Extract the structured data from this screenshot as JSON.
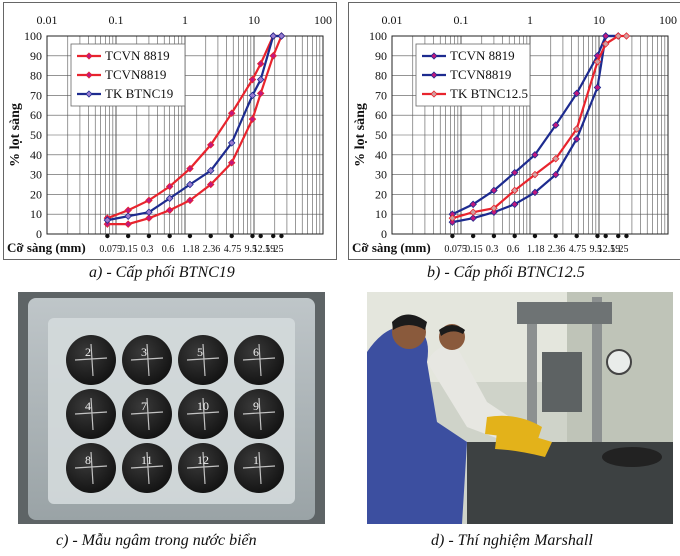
{
  "chart_data": [
    {
      "type": "line",
      "xscale": "log",
      "x_top_ticks": [
        "0.01",
        "0.1",
        "1",
        "10",
        "100"
      ],
      "xlim": [
        0.01,
        100
      ],
      "ylim": [
        0,
        100
      ],
      "y_ticks": [
        "0",
        "10",
        "20",
        "30",
        "40",
        "50",
        "60",
        "70",
        "80",
        "90",
        "100"
      ],
      "ylabel": "% lọt sàng",
      "xlabel": "Cỡ sàng (mm)",
      "sieve_labels": [
        "0.075",
        "0.15",
        "0.3",
        "0.6",
        "1.18",
        "2.36",
        "4.75",
        "9.5",
        "12.5",
        "19",
        "25"
      ],
      "sieve_sizes": [
        0.075,
        0.15,
        0.3,
        0.6,
        1.18,
        2.36,
        4.75,
        9.5,
        12.5,
        19,
        25
      ],
      "series": [
        {
          "name": "TCVN 8819",
          "color": "#e8242d",
          "marker": "#c0187e",
          "x": [
            0.075,
            0.15,
            0.3,
            0.6,
            1.18,
            2.36,
            4.75,
            9.5,
            12.5,
            19,
            25
          ],
          "y": [
            8,
            12,
            17,
            24,
            33,
            45,
            61,
            78,
            86,
            100,
            100
          ]
        },
        {
          "name": "TCVN8819",
          "color": "#e8242d",
          "marker": "#c0187e",
          "x": [
            0.075,
            0.15,
            0.3,
            0.6,
            1.18,
            2.36,
            4.75,
            9.5,
            12.5,
            19,
            25
          ],
          "y": [
            5,
            5,
            8,
            12,
            17,
            25,
            36,
            58,
            71,
            90,
            100
          ]
        },
        {
          "name": "TK BTNC19",
          "color": "#1d2b8f",
          "marker": "#9a7bd0",
          "x": [
            0.075,
            0.15,
            0.3,
            0.6,
            1.18,
            2.36,
            4.75,
            9.5,
            12.5,
            19,
            25
          ],
          "y": [
            7,
            9,
            11,
            18,
            25,
            32,
            46,
            70,
            78,
            100,
            100
          ]
        }
      ]
    },
    {
      "type": "line",
      "xscale": "log",
      "x_top_ticks": [
        "0.01",
        "0.1",
        "1",
        "10",
        "100"
      ],
      "xlim": [
        0.01,
        100
      ],
      "ylim": [
        0,
        100
      ],
      "y_ticks": [
        "0",
        "10",
        "20",
        "30",
        "40",
        "50",
        "60",
        "70",
        "80",
        "90",
        "100"
      ],
      "ylabel": "% lọt sàng",
      "xlabel": "Cỡ sàng (mm)",
      "sieve_labels": [
        "0.075",
        "0.15",
        "0.3",
        "0.6",
        "1.18",
        "2.36",
        "4.75",
        "9.5",
        "12.5",
        "19",
        "25"
      ],
      "sieve_sizes": [
        0.075,
        0.15,
        0.3,
        0.6,
        1.18,
        2.36,
        4.75,
        9.5,
        12.5,
        19,
        25
      ],
      "series": [
        {
          "name": "TCVN 8819",
          "color": "#1d2b8f",
          "marker": "#c0187e",
          "x": [
            0.075,
            0.15,
            0.3,
            0.6,
            1.18,
            2.36,
            4.75,
            9.5,
            12.5,
            19
          ],
          "y": [
            10,
            15,
            22,
            31,
            40,
            55,
            71,
            90,
            100,
            100
          ]
        },
        {
          "name": "TCVN8819",
          "color": "#1d2b8f",
          "marker": "#c0187e",
          "x": [
            0.075,
            0.15,
            0.3,
            0.6,
            1.18,
            2.36,
            4.75,
            9.5,
            12.5,
            19
          ],
          "y": [
            6,
            8,
            11,
            15,
            21,
            30,
            48,
            74,
            100,
            100
          ]
        },
        {
          "name": "TK BTNC12.5",
          "color": "#e8242d",
          "marker": "#d0a0a0",
          "x": [
            0.075,
            0.15,
            0.3,
            0.6,
            1.18,
            2.36,
            4.75,
            9.5,
            12.5,
            19,
            25
          ],
          "y": [
            8,
            11,
            13,
            22,
            30,
            38,
            53,
            87,
            96,
            100,
            100
          ]
        }
      ]
    }
  ],
  "captions": {
    "a": "a) - Cấp phối BTNC19",
    "b": "b) - Cấp phối BTNC12.5",
    "c": "c) - Mẫu ngâm trong nước biển",
    "d": "d) - Thí nghiệm Marshall"
  },
  "sample_labels": [
    "2",
    "3",
    "5",
    "6",
    "4",
    "7",
    "10",
    "9",
    "8",
    "11",
    "12",
    "1"
  ]
}
